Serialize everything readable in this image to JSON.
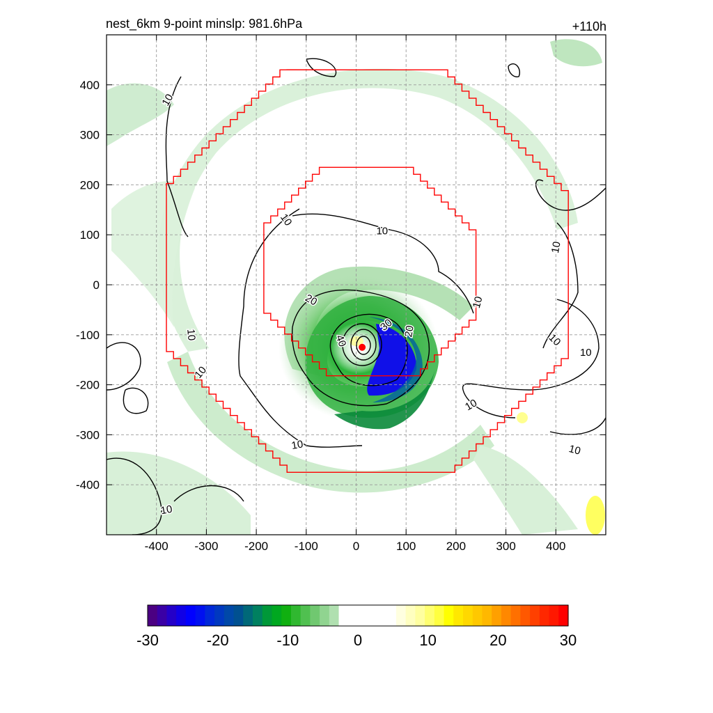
{
  "chart_data": {
    "type": "heatmap",
    "title": "nest_6km  9-point minslp: 981.6hPa",
    "time_label": "+110h",
    "xlim": [
      -500,
      500
    ],
    "ylim": [
      -500,
      500
    ],
    "xticks": [
      -400,
      -300,
      -200,
      -100,
      0,
      100,
      200,
      300,
      400
    ],
    "yticks": [
      400,
      300,
      200,
      100,
      0,
      -100,
      -200,
      -300,
      -400
    ],
    "grid": true,
    "grid_style": "dashed",
    "center_marker": {
      "x": 12,
      "y": -125,
      "color": "#ff0000"
    },
    "red_boundaries": [
      {
        "name": "",
        "shape": "stepped-octagon",
        "x_range": [
          -380,
          425
        ],
        "y_range": [
          -375,
          430
        ]
      },
      {
        "name": "",
        "shape": "stepped-octagon",
        "x_range": [
          -185,
          240
        ],
        "y_range": [
          -182,
          235
        ]
      }
    ],
    "contour_labels": [
      {
        "text": "10",
        "x": -378,
        "y": 370,
        "rotation": 60
      },
      {
        "text": "10",
        "x": -330,
        "y": -100,
        "rotation": -85
      },
      {
        "text": "10",
        "x": -312,
        "y": -175,
        "rotation": 50
      },
      {
        "text": "10",
        "x": -140,
        "y": 130,
        "rotation": -55
      },
      {
        "text": "10",
        "x": 52,
        "y": 108,
        "rotation": 0
      },
      {
        "text": "10",
        "x": 243,
        "y": -35,
        "rotation": 75
      },
      {
        "text": "10",
        "x": 230,
        "y": -240,
        "rotation": 30
      },
      {
        "text": "10",
        "x": -118,
        "y": -320,
        "rotation": 10
      },
      {
        "text": "10",
        "x": 400,
        "y": 75,
        "rotation": 80
      },
      {
        "text": "10",
        "x": 398,
        "y": -110,
        "rotation": -45
      },
      {
        "text": "10",
        "x": 460,
        "y": -135,
        "rotation": 0
      },
      {
        "text": "10",
        "x": 438,
        "y": -330,
        "rotation": -15
      },
      {
        "text": "10",
        "x": -380,
        "y": -450,
        "rotation": 10
      },
      {
        "text": "20",
        "x": -90,
        "y": -30,
        "rotation": -30
      },
      {
        "text": "20",
        "x": 106,
        "y": -93,
        "rotation": 80
      },
      {
        "text": "30",
        "x": 60,
        "y": -80,
        "rotation": 40
      },
      {
        "text": "40",
        "x": -30,
        "y": -112,
        "rotation": -70
      }
    ],
    "colorbar": {
      "min": -30,
      "max": 30,
      "tick_labels": [
        "-30",
        "-20",
        "-10",
        "0",
        "10",
        "20",
        "30"
      ],
      "colors": [
        "#4b0082",
        "#3a00a5",
        "#2400c8",
        "#1000e6",
        "#0000ff",
        "#0010f0",
        "#0028d8",
        "#0038c0",
        "#0048a8",
        "#005090",
        "#006878",
        "#008060",
        "#009838",
        "#00a820",
        "#10b010",
        "#30b830",
        "#50c050",
        "#70c870",
        "#90d490",
        "#b0e0b0",
        "#ffffff",
        "#ffffff",
        "#ffffff",
        "#ffffff",
        "#ffffff",
        "#ffffff",
        "#ffffe0",
        "#ffffc0",
        "#ffffa0",
        "#ffff70",
        "#ffff40",
        "#ffff00",
        "#ffe800",
        "#ffd800",
        "#ffc800",
        "#ffb800",
        "#ffa000",
        "#ff8800",
        "#ff7000",
        "#ff5800",
        "#ff4000",
        "#ff2800",
        "#ff1800",
        "#ff0000"
      ]
    }
  }
}
